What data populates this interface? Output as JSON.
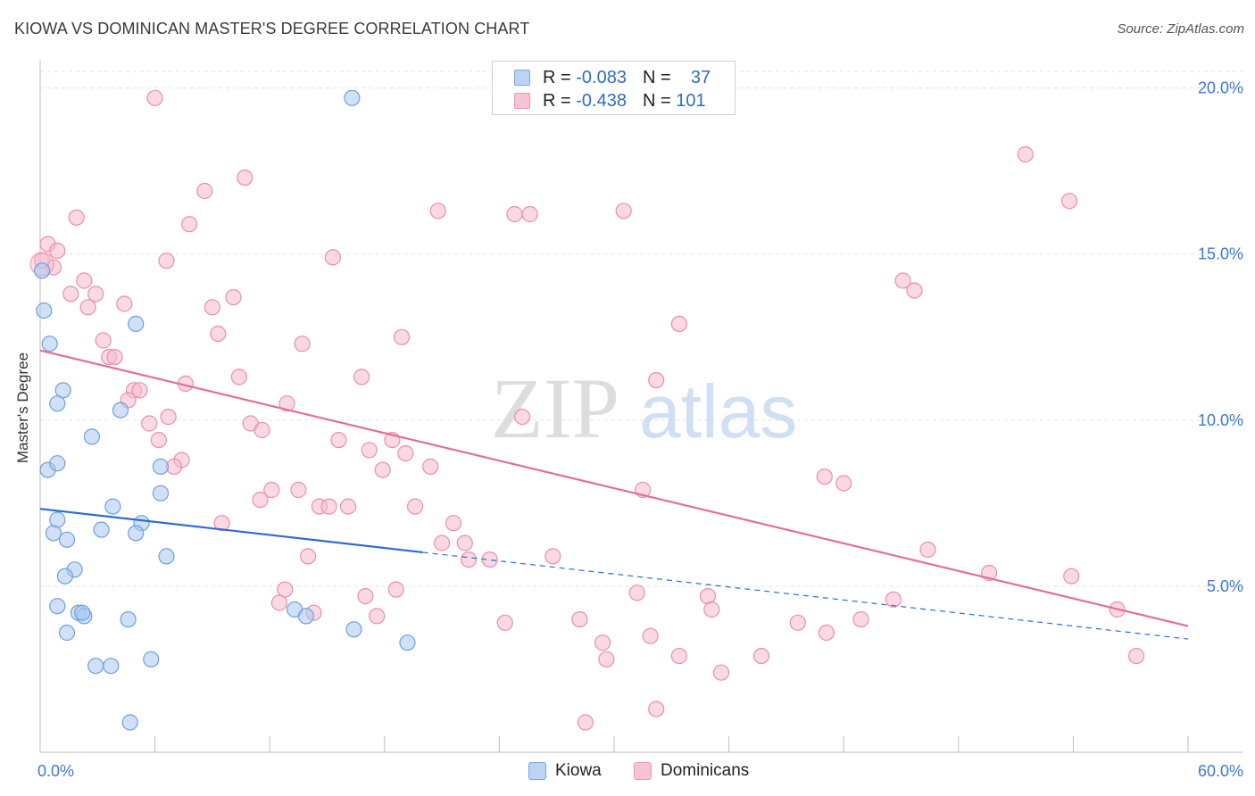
{
  "header": {
    "title": "KIOWA VS DOMINICAN MASTER'S DEGREE CORRELATION CHART",
    "source": "Source: ZipAtlas.com"
  },
  "watermark": {
    "zip": "ZIP",
    "atlas": "atlas"
  },
  "legend": {
    "kiowa": {
      "r_label": "R =",
      "r_value": "-0.083",
      "n_label": "N =",
      "n_value": "37"
    },
    "dominicans": {
      "r_label": "R =",
      "r_value": "-0.438",
      "n_label": "N =",
      "n_value": "101"
    }
  },
  "bottom_legend": {
    "kiowa": "Kiowa",
    "dominicans": "Dominicans"
  },
  "colors": {
    "kiowa_fill": "#a9c8f0",
    "kiowa_stroke": "#6d9fe0",
    "kiowa_line": "#2e6bd0",
    "dom_fill": "#f6b9cc",
    "dom_stroke": "#ea8eab",
    "dom_line": "#e36e97",
    "tick_label": "#3c78d8",
    "grid": "#e3e3e3"
  },
  "chart_data": {
    "type": "scatter",
    "title": "KIOWA VS DOMINICAN MASTER'S DEGREE CORRELATION CHART",
    "xlabel": "",
    "ylabel": "Master's Degree",
    "xlim": [
      0,
      60
    ],
    "ylim": [
      0,
      20.5
    ],
    "x_tick_labels": [
      {
        "value": 0,
        "label": "0.0%"
      },
      {
        "value": 60,
        "label": "60.0%"
      }
    ],
    "y_tick_labels": [
      {
        "value": 5,
        "label": "5.0%"
      },
      {
        "value": 10,
        "label": "10.0%"
      },
      {
        "value": 15,
        "label": "15.0%"
      },
      {
        "value": 20,
        "label": "20.0%"
      }
    ],
    "series": [
      {
        "name": "Kiowa",
        "points": [
          [
            0.1,
            14.5
          ],
          [
            0.2,
            13.3
          ],
          [
            0.5,
            12.3
          ],
          [
            1.2,
            10.9
          ],
          [
            0.9,
            10.5
          ],
          [
            0.4,
            8.5
          ],
          [
            0.9,
            8.7
          ],
          [
            2.7,
            9.5
          ],
          [
            4.2,
            10.3
          ],
          [
            5.0,
            12.9
          ],
          [
            3.8,
            7.4
          ],
          [
            5.3,
            6.9
          ],
          [
            6.3,
            7.8
          ],
          [
            5.0,
            6.6
          ],
          [
            3.2,
            6.7
          ],
          [
            0.7,
            6.6
          ],
          [
            0.9,
            7.0
          ],
          [
            1.4,
            6.4
          ],
          [
            1.8,
            5.5
          ],
          [
            1.3,
            5.3
          ],
          [
            0.9,
            4.4
          ],
          [
            2.0,
            4.2
          ],
          [
            2.3,
            4.1
          ],
          [
            2.2,
            4.2
          ],
          [
            4.6,
            4.0
          ],
          [
            1.4,
            3.6
          ],
          [
            2.9,
            2.6
          ],
          [
            3.7,
            2.6
          ],
          [
            5.8,
            2.8
          ],
          [
            4.7,
            0.9
          ],
          [
            6.3,
            8.6
          ],
          [
            13.3,
            4.3
          ],
          [
            13.9,
            4.1
          ],
          [
            16.4,
            3.7
          ],
          [
            19.2,
            3.3
          ],
          [
            16.3,
            19.7
          ],
          [
            6.6,
            5.9
          ]
        ],
        "trend": {
          "x": [
            0,
            20
          ],
          "y": [
            7.33,
            6.02
          ]
        },
        "trend_extension": {
          "x": [
            20,
            60
          ],
          "y": [
            6.02,
            3.41
          ]
        }
      },
      {
        "name": "Dominicans",
        "points": [
          [
            6.0,
            19.7
          ],
          [
            1.9,
            16.1
          ],
          [
            8.6,
            16.9
          ],
          [
            7.8,
            15.9
          ],
          [
            10.7,
            17.3
          ],
          [
            0.4,
            15.3
          ],
          [
            0.9,
            15.1
          ],
          [
            0.7,
            14.6
          ],
          [
            6.6,
            14.8
          ],
          [
            15.3,
            14.9
          ],
          [
            20.8,
            16.3
          ],
          [
            24.8,
            16.2
          ],
          [
            25.6,
            16.2
          ],
          [
            30.5,
            16.3
          ],
          [
            51.5,
            18.0
          ],
          [
            53.8,
            16.6
          ],
          [
            45.1,
            14.2
          ],
          [
            45.7,
            13.9
          ],
          [
            2.3,
            14.2
          ],
          [
            1.6,
            13.8
          ],
          [
            2.9,
            13.8
          ],
          [
            4.4,
            13.5
          ],
          [
            2.5,
            13.4
          ],
          [
            9.0,
            13.4
          ],
          [
            10.1,
            13.7
          ],
          [
            9.3,
            12.6
          ],
          [
            13.7,
            12.3
          ],
          [
            18.9,
            12.5
          ],
          [
            33.4,
            12.9
          ],
          [
            3.3,
            12.4
          ],
          [
            3.6,
            11.9
          ],
          [
            3.9,
            11.9
          ],
          [
            7.6,
            11.1
          ],
          [
            10.4,
            11.3
          ],
          [
            16.8,
            11.3
          ],
          [
            32.2,
            11.2
          ],
          [
            4.9,
            10.9
          ],
          [
            5.2,
            10.9
          ],
          [
            4.6,
            10.6
          ],
          [
            6.7,
            10.1
          ],
          [
            12.9,
            10.5
          ],
          [
            25.2,
            10.1
          ],
          [
            5.7,
            9.9
          ],
          [
            11.0,
            9.9
          ],
          [
            11.6,
            9.7
          ],
          [
            6.2,
            9.4
          ],
          [
            15.6,
            9.4
          ],
          [
            17.2,
            9.1
          ],
          [
            18.4,
            9.4
          ],
          [
            19.1,
            9.0
          ],
          [
            7.4,
            8.8
          ],
          [
            7.0,
            8.6
          ],
          [
            17.9,
            8.5
          ],
          [
            20.4,
            8.6
          ],
          [
            41.0,
            8.3
          ],
          [
            42.0,
            8.1
          ],
          [
            31.5,
            7.9
          ],
          [
            11.5,
            7.6
          ],
          [
            12.1,
            7.9
          ],
          [
            13.5,
            7.9
          ],
          [
            14.6,
            7.4
          ],
          [
            15.1,
            7.4
          ],
          [
            16.1,
            7.4
          ],
          [
            19.6,
            7.4
          ],
          [
            9.5,
            6.9
          ],
          [
            21.6,
            6.9
          ],
          [
            21.0,
            6.3
          ],
          [
            22.2,
            6.3
          ],
          [
            22.4,
            5.8
          ],
          [
            23.5,
            5.8
          ],
          [
            26.8,
            5.9
          ],
          [
            14.0,
            5.9
          ],
          [
            46.4,
            6.1
          ],
          [
            12.8,
            4.9
          ],
          [
            18.6,
            4.9
          ],
          [
            17.0,
            4.7
          ],
          [
            31.2,
            4.8
          ],
          [
            34.9,
            4.7
          ],
          [
            53.9,
            5.3
          ],
          [
            49.6,
            5.4
          ],
          [
            44.6,
            4.6
          ],
          [
            12.5,
            4.5
          ],
          [
            14.3,
            4.2
          ],
          [
            17.6,
            4.1
          ],
          [
            24.3,
            3.9
          ],
          [
            28.2,
            4.0
          ],
          [
            35.1,
            4.3
          ],
          [
            39.6,
            3.9
          ],
          [
            41.1,
            3.6
          ],
          [
            42.9,
            4.0
          ],
          [
            56.3,
            4.3
          ],
          [
            29.4,
            3.3
          ],
          [
            29.6,
            2.8
          ],
          [
            31.9,
            3.5
          ],
          [
            33.4,
            2.9
          ],
          [
            35.6,
            2.4
          ],
          [
            37.7,
            2.9
          ],
          [
            57.3,
            2.9
          ],
          [
            28.5,
            0.9
          ],
          [
            32.2,
            1.3
          ],
          [
            0.1,
            14.8
          ]
        ],
        "trend": {
          "x": [
            0,
            60
          ],
          "y": [
            12.1,
            3.8
          ]
        }
      }
    ]
  }
}
